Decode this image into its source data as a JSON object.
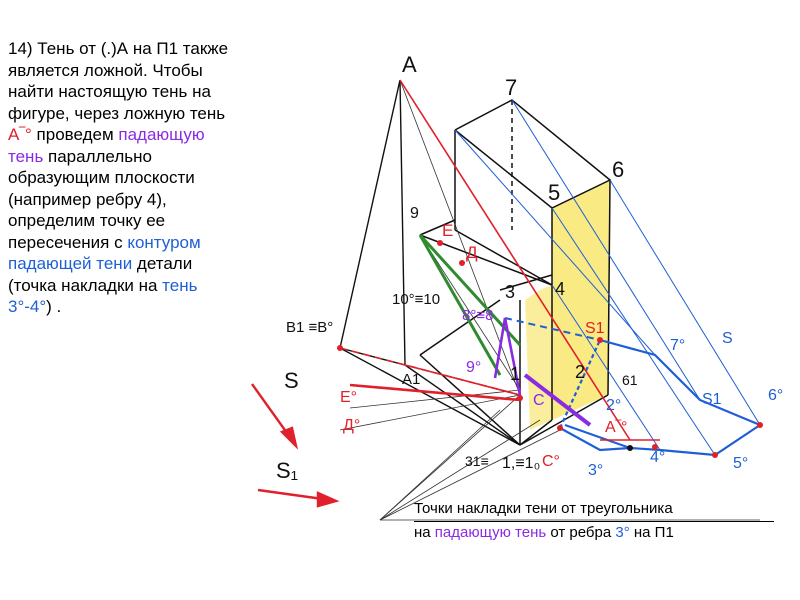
{
  "left_text": {
    "p1": "14) Тень от (.)А на П1 также является ложной. Чтобы найти настоящую тень на фигуре, через ложную тень ",
    "a_shadow": "А‾°",
    "p2": " проведем ",
    "falling_shadow": "падающую тень",
    "p3": " параллельно образующим плоскости (например ребру 4), определим точку ее пересечения с ",
    "contour": "контуром падающей тени",
    "p4": " детали (точка накладки на ",
    "shadow_ref": "тень 3°-4°",
    "p5": ") ."
  },
  "footer": {
    "line1": "Точки накладки тени от треугольника",
    "l2_a": "на ",
    "l2_b": "падающую тень",
    "l2_c": " от ребра ",
    "l2_d": "3°",
    "l2_e": " на П1"
  },
  "labels": {
    "A": "A",
    "n7": "7",
    "n6": "6",
    "n5": "5",
    "n4": "4",
    "n3": "3",
    "n9": "9",
    "E": "E",
    "D": "Д",
    "n10": "10°≡10",
    "n8": "8°≡8",
    "B1": "B1 ≡B°",
    "S1_red": "S1",
    "S_blue": "S",
    "S1_blue": "S1",
    "n7deg": "7°",
    "n6deg": "6°",
    "n5deg": "5°",
    "n4deg": "4°",
    "n3deg": "3°",
    "n2deg": "2°",
    "n9deg": "9°",
    "n61": "61",
    "A1": "A1",
    "Edeg": "E°",
    "Ddeg": "Д°",
    "C": "C",
    "Cdeg": "C°",
    "A_shadow_pt": "А‾°",
    "n31": "31≡",
    "n11": "1,≡1₀",
    "S_hand": "S",
    "S1_hand": "S₁",
    "n1": "1",
    "n2": "2"
  },
  "colors": {
    "red": "#e0202a",
    "blue": "#1f5fd6",
    "purple": "#8a2be2",
    "green": "#2e8b2e",
    "yellow": "#f7e35a"
  }
}
